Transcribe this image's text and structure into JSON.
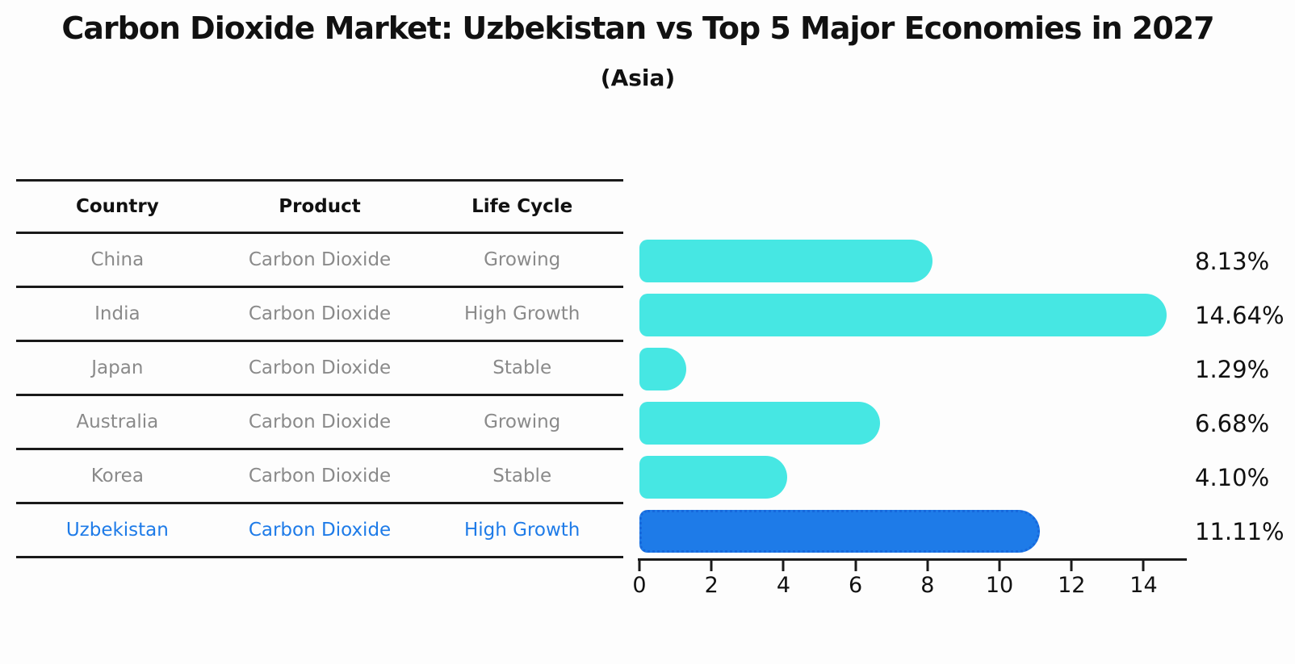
{
  "title": "Carbon Dioxide Market: Uzbekistan vs Top 5 Major Economies in 2027",
  "subtitle": "(Asia)",
  "table": {
    "headers": [
      "Country",
      "Product",
      "Life Cycle"
    ],
    "rows": [
      {
        "country": "China",
        "product": "Carbon Dioxide",
        "life_cycle": "Growing",
        "highlighted": false
      },
      {
        "country": "India",
        "product": "Carbon Dioxide",
        "life_cycle": "High Growth",
        "highlighted": false
      },
      {
        "country": "Japan",
        "product": "Carbon Dioxide",
        "life_cycle": "Stable",
        "highlighted": false
      },
      {
        "country": "Australia",
        "product": "Carbon Dioxide",
        "life_cycle": "Growing",
        "highlighted": false
      },
      {
        "country": "Korea",
        "product": "Carbon Dioxide",
        "life_cycle": "Stable",
        "highlighted": false
      },
      {
        "country": "Uzbekistan",
        "product": "Carbon Dioxide",
        "life_cycle": "High Growth",
        "highlighted": true
      }
    ]
  },
  "chart_data": {
    "type": "bar",
    "orientation": "horizontal",
    "title": "Carbon Dioxide Market: Uzbekistan vs Top 5 Major Economies in 2027",
    "subtitle": "(Asia)",
    "categories": [
      "China",
      "India",
      "Japan",
      "Australia",
      "Korea",
      "Uzbekistan"
    ],
    "values": [
      8.13,
      14.64,
      1.29,
      6.68,
      4.1,
      11.11
    ],
    "value_labels": [
      "8.13%",
      "14.64%",
      "1.29%",
      "6.68%",
      "4.10%",
      "11.11%"
    ],
    "xticks": [
      0,
      2,
      4,
      6,
      8,
      10,
      12,
      14
    ],
    "xlim": [
      0,
      15.2
    ],
    "grid": false,
    "legend": false,
    "bar_color": "#46E7E3",
    "highlight_color": "#1E7BE8",
    "highlight_border_color": "#1668DC",
    "highlight_index": 5
  },
  "colors": {
    "background": "#FDFDFD",
    "text": "#111111",
    "muted_text": "#8A8A8A",
    "highlight_text": "#1E7BE8",
    "line": "#1A1A1A"
  }
}
